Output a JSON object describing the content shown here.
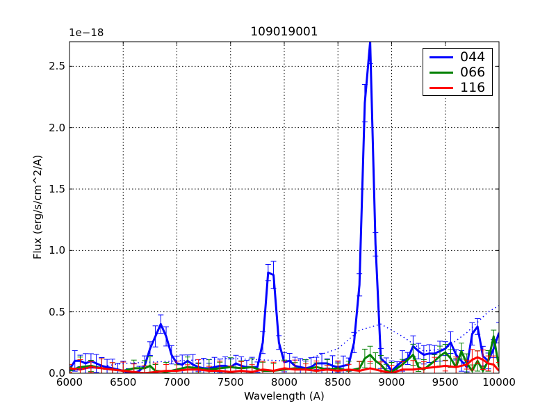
{
  "figure": {
    "title": "109019001",
    "offset_text": "1e−18",
    "xlabel": "Wavelength (A)",
    "ylabel": "Flux (erg/s/cm^2/A)",
    "xticks": [
      "6000",
      "6500",
      "7000",
      "7500",
      "8000",
      "8500",
      "9000",
      "9500",
      "10000"
    ],
    "yticks": [
      "0.0",
      "0.5",
      "1.0",
      "1.5",
      "2.0",
      "2.5"
    ],
    "legend": [
      {
        "label": "044",
        "color": "#0000ff"
      },
      {
        "label": "066",
        "color": "#008000"
      },
      {
        "label": "116",
        "color": "#ff0000"
      }
    ]
  },
  "chart_data": {
    "type": "line",
    "title": "109019001",
    "xlabel": "Wavelength (A)",
    "ylabel": "Flux (erg/s/cm^2/A)",
    "y_scale_factor": "1e-18",
    "xlim": [
      6000,
      10000
    ],
    "ylim": [
      0.0,
      2.7
    ],
    "grid": true,
    "legend_position": "upper right",
    "series": [
      {
        "name": "044",
        "color": "#0000ff",
        "style": "solid",
        "error_bars": true,
        "x": [
          6000,
          6050,
          6100,
          6150,
          6200,
          6250,
          6300,
          6350,
          6400,
          6450,
          6500,
          6550,
          6600,
          6650,
          6700,
          6750,
          6800,
          6850,
          6900,
          6950,
          7000,
          7050,
          7100,
          7150,
          7200,
          7250,
          7300,
          7350,
          7400,
          7450,
          7500,
          7550,
          7600,
          7650,
          7700,
          7750,
          7800,
          7850,
          7900,
          7950,
          8000,
          8050,
          8100,
          8150,
          8200,
          8250,
          8300,
          8350,
          8400,
          8450,
          8500,
          8550,
          8600,
          8650,
          8700,
          8750,
          8800,
          8850,
          8900,
          8950,
          9000,
          9050,
          9100,
          9150,
          9200,
          9250,
          9300,
          9350,
          9400,
          9450,
          9500,
          9550,
          9600,
          9650,
          9700,
          9750,
          9800,
          9850,
          9900,
          9950,
          10000
        ],
        "y": [
          0.03,
          0.1,
          0.1,
          0.08,
          0.1,
          0.08,
          0.06,
          0.05,
          0.04,
          0.03,
          0.02,
          0.0,
          0.0,
          0.02,
          0.06,
          0.2,
          0.3,
          0.4,
          0.3,
          0.15,
          0.08,
          0.07,
          0.1,
          0.07,
          0.05,
          0.04,
          0.04,
          0.05,
          0.06,
          0.06,
          0.05,
          0.08,
          0.06,
          0.05,
          0.05,
          0.05,
          0.25,
          0.82,
          0.8,
          0.25,
          0.09,
          0.1,
          0.06,
          0.05,
          0.04,
          0.05,
          0.08,
          0.08,
          0.08,
          0.06,
          0.05,
          0.06,
          0.07,
          0.25,
          0.72,
          2.2,
          2.7,
          1.05,
          0.12,
          0.08,
          0.02,
          0.06,
          0.1,
          0.12,
          0.22,
          0.18,
          0.15,
          0.16,
          0.16,
          0.18,
          0.2,
          0.25,
          0.15,
          0.1,
          0.05,
          0.32,
          0.38,
          0.14,
          0.1,
          0.2,
          0.33
        ]
      },
      {
        "name": "066",
        "color": "#008000",
        "style": "solid",
        "error_bars": true,
        "x": [
          6000,
          6100,
          6200,
          6300,
          6400,
          6500,
          6600,
          6700,
          6750,
          6800,
          6900,
          7000,
          7100,
          7200,
          7300,
          7400,
          7500,
          7600,
          7700,
          7800,
          7900,
          8000,
          8100,
          8200,
          8300,
          8400,
          8500,
          8600,
          8700,
          8750,
          8800,
          8850,
          8900,
          8950,
          9000,
          9100,
          9200,
          9250,
          9300,
          9400,
          9450,
          9500,
          9550,
          9600,
          9650,
          9700,
          9750,
          9800,
          9850,
          9900,
          9950,
          10000
        ],
        "y": [
          0.02,
          0.05,
          0.06,
          0.04,
          0.03,
          0.02,
          0.04,
          0.04,
          0.06,
          0.02,
          0.01,
          0.03,
          0.05,
          0.04,
          0.03,
          0.04,
          0.05,
          0.04,
          0.05,
          0.02,
          0.02,
          0.03,
          0.04,
          0.03,
          0.05,
          0.03,
          0.04,
          0.02,
          0.04,
          0.12,
          0.15,
          0.1,
          0.07,
          0.02,
          0.01,
          0.07,
          0.15,
          0.05,
          0.03,
          0.1,
          0.14,
          0.17,
          0.12,
          0.05,
          0.18,
          0.08,
          0.02,
          0.1,
          0.02,
          0.1,
          0.3,
          0.05
        ]
      },
      {
        "name": "116",
        "color": "#ff0000",
        "style": "solid",
        "error_bars": true,
        "x": [
          6000,
          6100,
          6200,
          6300,
          6400,
          6500,
          6600,
          6700,
          6800,
          6900,
          7000,
          7100,
          7200,
          7300,
          7400,
          7500,
          7600,
          7700,
          7800,
          7900,
          8000,
          8100,
          8200,
          8300,
          8400,
          8500,
          8600,
          8700,
          8800,
          8900,
          9000,
          9100,
          9200,
          9300,
          9400,
          9500,
          9600,
          9700,
          9750,
          9800,
          9850,
          9900,
          9950,
          10000
        ],
        "y": [
          0.04,
          0.03,
          0.05,
          0.04,
          0.03,
          0.02,
          0.01,
          0.0,
          0.01,
          0.02,
          0.02,
          0.03,
          0.03,
          0.02,
          0.02,
          0.01,
          0.02,
          0.01,
          0.03,
          0.02,
          0.04,
          0.03,
          0.03,
          0.02,
          0.03,
          0.02,
          0.03,
          0.02,
          0.04,
          0.02,
          0.0,
          0.03,
          0.03,
          0.04,
          0.05,
          0.06,
          0.05,
          0.07,
          0.11,
          0.13,
          0.11,
          0.08,
          0.07,
          0.02
        ]
      },
      {
        "name": "model (dotted)",
        "color": "#0000ff",
        "style": "dotted",
        "error_bars": false,
        "x": [
          6000,
          6500,
          7000,
          7500,
          8000,
          8200,
          8500,
          8700,
          8900,
          9100,
          9300,
          9500,
          9700,
          9900,
          10000
        ],
        "y": [
          0.02,
          0.08,
          0.1,
          0.12,
          0.1,
          0.11,
          0.2,
          0.35,
          0.4,
          0.3,
          0.18,
          0.2,
          0.33,
          0.5,
          0.55
        ]
      }
    ]
  }
}
